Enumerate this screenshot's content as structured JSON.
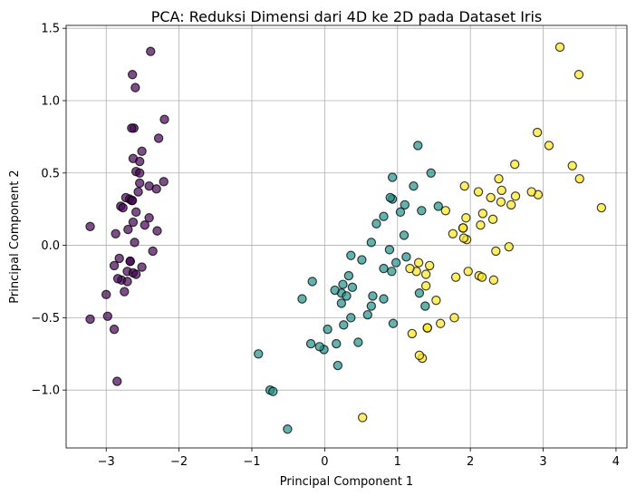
{
  "chart_data": {
    "type": "scatter",
    "title": "PCA: Reduksi Dimensi dari 4D ke 2D pada Dataset Iris",
    "xlabel": "Principal Component 1",
    "ylabel": "Principal Component 2",
    "xlim": [
      -3.55,
      4.15
    ],
    "ylim": [
      -1.4,
      1.52
    ],
    "grid": true,
    "legend": "none",
    "xticks": [
      -3,
      -2,
      -1,
      0,
      1,
      2,
      3,
      4
    ],
    "xtick_labels": [
      "−3",
      "−2",
      "−1",
      "0",
      "1",
      "2",
      "3",
      "4"
    ],
    "yticks": [
      -1.0,
      -0.5,
      0.0,
      0.5,
      1.0,
      1.5
    ],
    "ytick_labels": [
      "−1.0",
      "−0.5",
      "0.0",
      "0.5",
      "1.0",
      "1.5"
    ],
    "series": [
      {
        "color": "#440154",
        "points": [
          [
            -2.68,
            0.32
          ],
          [
            -2.71,
            -0.18
          ],
          [
            -2.89,
            -0.14
          ],
          [
            -2.75,
            -0.32
          ],
          [
            -2.73,
            0.33
          ],
          [
            -2.28,
            0.74
          ],
          [
            -2.82,
            -0.09
          ],
          [
            -2.63,
            0.16
          ],
          [
            -2.89,
            -0.58
          ],
          [
            -2.67,
            -0.11
          ],
          [
            -2.51,
            0.65
          ],
          [
            -2.61,
            0.02
          ],
          [
            -2.79,
            -0.24
          ],
          [
            -3.22,
            -0.51
          ],
          [
            -2.64,
            1.18
          ],
          [
            -2.39,
            1.34
          ],
          [
            -2.62,
            0.81
          ],
          [
            -2.65,
            0.31
          ],
          [
            -2.2,
            0.87
          ],
          [
            -2.59,
            0.51
          ],
          [
            -2.31,
            0.39
          ],
          [
            -2.54,
            0.43
          ],
          [
            -3.22,
            0.13
          ],
          [
            -2.3,
            0.1
          ],
          [
            -2.36,
            -0.04
          ],
          [
            -2.51,
            -0.15
          ],
          [
            -2.47,
            0.14
          ],
          [
            -2.56,
            0.37
          ],
          [
            -2.64,
            0.31
          ],
          [
            -2.63,
            -0.19
          ],
          [
            -2.59,
            -0.2
          ],
          [
            -2.41,
            0.41
          ],
          [
            -2.65,
            0.81
          ],
          [
            -2.6,
            1.09
          ],
          [
            -2.67,
            -0.11
          ],
          [
            -2.87,
            0.08
          ],
          [
            -2.63,
            0.6
          ],
          [
            -2.8,
            0.27
          ],
          [
            -2.98,
            -0.49
          ],
          [
            -2.59,
            0.23
          ],
          [
            -2.77,
            0.26
          ],
          [
            -2.85,
            -0.94
          ],
          [
            -3.0,
            -0.34
          ],
          [
            -2.41,
            0.19
          ],
          [
            -2.21,
            0.44
          ],
          [
            -2.71,
            -0.25
          ],
          [
            -2.54,
            0.5
          ],
          [
            -2.84,
            -0.23
          ],
          [
            -2.54,
            0.58
          ],
          [
            -2.7,
            0.11
          ]
        ]
      },
      {
        "color": "#21918c",
        "points": [
          [
            1.28,
            0.69
          ],
          [
            0.93,
            0.32
          ],
          [
            1.46,
            0.5
          ],
          [
            0.18,
            -0.83
          ],
          [
            1.09,
            0.07
          ],
          [
            0.64,
            -0.42
          ],
          [
            1.1,
            0.28
          ],
          [
            -0.75,
            -1.0
          ],
          [
            1.04,
            0.23
          ],
          [
            -0.01,
            -0.72
          ],
          [
            -0.51,
            -1.27
          ],
          [
            0.51,
            -0.1
          ],
          [
            0.26,
            -0.55
          ],
          [
            0.98,
            -0.12
          ],
          [
            -0.17,
            -0.25
          ],
          [
            0.93,
            0.47
          ],
          [
            0.66,
            -0.35
          ],
          [
            0.23,
            -0.33
          ],
          [
            0.94,
            -0.54
          ],
          [
            0.04,
            -0.58
          ],
          [
            1.12,
            -0.08
          ],
          [
            0.36,
            -0.07
          ],
          [
            1.3,
            -0.33
          ],
          [
            0.92,
            -0.18
          ],
          [
            0.71,
            0.15
          ],
          [
            0.9,
            0.33
          ],
          [
            1.33,
            0.24
          ],
          [
            1.56,
            0.27
          ],
          [
            0.81,
            -0.16
          ],
          [
            -0.31,
            -0.37
          ],
          [
            -0.07,
            -0.7
          ],
          [
            -0.19,
            -0.68
          ],
          [
            0.14,
            -0.31
          ],
          [
            1.38,
            -0.42
          ],
          [
            0.59,
            -0.48
          ],
          [
            0.81,
            0.2
          ],
          [
            1.22,
            0.41
          ],
          [
            0.81,
            -0.37
          ],
          [
            0.25,
            -0.27
          ],
          [
            0.16,
            -0.68
          ],
          [
            0.46,
            -0.67
          ],
          [
            0.89,
            -0.03
          ],
          [
            0.23,
            -0.4
          ],
          [
            -0.71,
            -1.01
          ],
          [
            0.36,
            -0.5
          ],
          [
            0.33,
            -0.21
          ],
          [
            0.38,
            -0.29
          ],
          [
            0.64,
            0.02
          ],
          [
            -0.91,
            -0.75
          ],
          [
            0.3,
            -0.35
          ]
        ]
      },
      {
        "color": "#fde725",
        "points": [
          [
            2.53,
            -0.01
          ],
          [
            1.41,
            -0.57
          ],
          [
            2.62,
            0.34
          ],
          [
            1.97,
            -0.18
          ],
          [
            2.35,
            -0.04
          ],
          [
            3.4,
            0.55
          ],
          [
            0.52,
            -1.19
          ],
          [
            2.93,
            0.35
          ],
          [
            2.32,
            -0.24
          ],
          [
            2.92,
            0.78
          ],
          [
            1.66,
            0.24
          ],
          [
            1.8,
            -0.22
          ],
          [
            2.17,
            0.22
          ],
          [
            1.34,
            -0.78
          ],
          [
            1.59,
            -0.54
          ],
          [
            1.9,
            0.12
          ],
          [
            1.95,
            0.04
          ],
          [
            3.49,
            1.18
          ],
          [
            3.8,
            0.26
          ],
          [
            1.3,
            -0.76
          ],
          [
            2.43,
            0.38
          ],
          [
            1.2,
            -0.61
          ],
          [
            3.5,
            0.46
          ],
          [
            1.39,
            -0.2
          ],
          [
            2.28,
            0.33
          ],
          [
            2.61,
            0.56
          ],
          [
            1.26,
            -0.18
          ],
          [
            1.29,
            -0.12
          ],
          [
            2.12,
            -0.21
          ],
          [
            2.39,
            0.46
          ],
          [
            2.84,
            0.37
          ],
          [
            3.23,
            1.37
          ],
          [
            2.16,
            -0.22
          ],
          [
            1.44,
            -0.14
          ],
          [
            1.78,
            -0.5
          ],
          [
            3.08,
            0.69
          ],
          [
            2.14,
            0.14
          ],
          [
            1.91,
            0.05
          ],
          [
            1.17,
            -0.16
          ],
          [
            2.11,
            0.37
          ],
          [
            2.31,
            0.18
          ],
          [
            1.92,
            0.41
          ],
          [
            1.41,
            -0.57
          ],
          [
            2.56,
            0.28
          ],
          [
            2.42,
            0.3
          ],
          [
            1.94,
            0.19
          ],
          [
            1.53,
            -0.38
          ],
          [
            1.76,
            0.08
          ],
          [
            1.9,
            0.12
          ],
          [
            1.39,
            -0.28
          ]
        ]
      }
    ]
  }
}
